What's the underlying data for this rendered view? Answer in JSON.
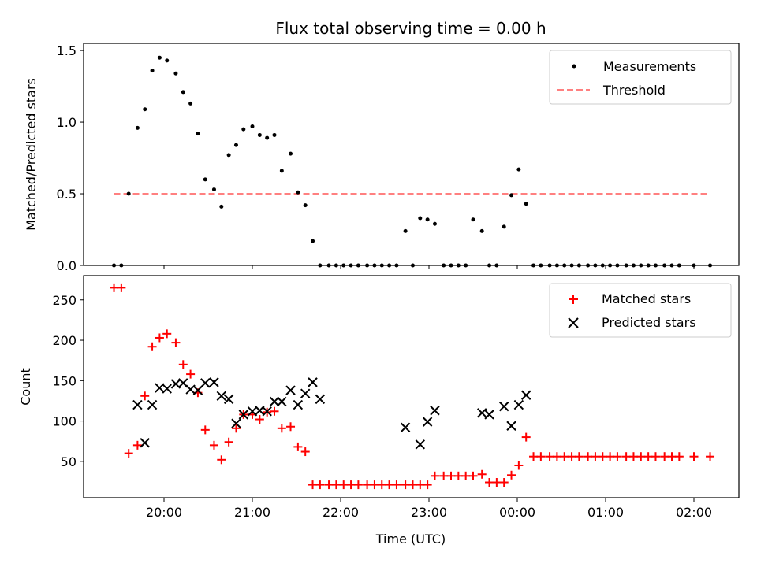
{
  "chart_data": [
    {
      "type": "scatter",
      "title": "Flux total observing time = 0.00 h",
      "xlabel": "",
      "ylabel": "Matched/Predicted stars",
      "ylim": [
        0,
        1.55
      ],
      "yticks": [
        "0.0",
        "0.5",
        "1.0",
        "1.5"
      ],
      "xticks": [
        "20:00",
        "21:00",
        "22:00",
        "23:00",
        "00:00",
        "01:00",
        "02:00"
      ],
      "legend": {
        "placement": "top-right",
        "entries": [
          "Measurements",
          "Threshold"
        ]
      },
      "series": [
        {
          "name": "Measurements",
          "x": [
            "19:26",
            "19:31",
            "19:36",
            "19:42",
            "19:47",
            "19:52",
            "19:57",
            "20:02",
            "20:08",
            "20:13",
            "20:18",
            "20:23",
            "20:28",
            "20:34",
            "20:39",
            "20:44",
            "20:49",
            "20:54",
            "21:00",
            "21:05",
            "21:10",
            "21:15",
            "21:20",
            "21:26",
            "21:31",
            "21:36",
            "21:41",
            "21:46",
            "21:52",
            "21:57",
            "22:02",
            "22:07",
            "22:12",
            "22:18",
            "22:23",
            "22:28",
            "22:33",
            "22:38",
            "22:44",
            "22:49",
            "22:54",
            "22:59",
            "23:04",
            "23:10",
            "23:15",
            "23:20",
            "23:25",
            "23:30",
            "23:36",
            "23:41",
            "23:46",
            "23:51",
            "23:56",
            "00:01",
            "00:06",
            "00:11",
            "00:16",
            "00:22",
            "00:27",
            "00:32",
            "00:37",
            "00:42",
            "00:48",
            "00:53",
            "00:58",
            "01:03",
            "01:08",
            "01:14",
            "01:19",
            "01:24",
            "01:29",
            "01:34",
            "01:40",
            "01:45",
            "01:50",
            "02:00",
            "02:11"
          ],
          "values": [
            0.0,
            0.0,
            0.5,
            0.96,
            1.09,
            1.36,
            1.45,
            1.43,
            1.34,
            1.21,
            1.13,
            0.92,
            0.6,
            0.53,
            0.41,
            0.77,
            0.84,
            0.95,
            0.97,
            0.91,
            0.89,
            0.91,
            0.66,
            0.78,
            0.51,
            0.42,
            0.17,
            0.0,
            0.0,
            0.0,
            0.0,
            0.0,
            0.0,
            0.0,
            0.0,
            0.0,
            0.0,
            0.0,
            0.24,
            0.0,
            0.33,
            0.32,
            0.29,
            0.0,
            0.0,
            0.0,
            0.0,
            0.32,
            0.24,
            0.0,
            0.0,
            0.27,
            0.49,
            0.67,
            0.43,
            0.0,
            0.0,
            0.0,
            0.0,
            0.0,
            0.0,
            0.0,
            0.0,
            0.0,
            0.0,
            0.0,
            0.0,
            0.0,
            0.0,
            0.0,
            0.0,
            0.0,
            0.0,
            0.0,
            0.0,
            0.0,
            0.0
          ],
          "color": "#000000"
        },
        {
          "name": "Threshold",
          "x": [
            "19:26",
            "02:11"
          ],
          "values": [
            0.5,
            0.5
          ],
          "color": "#ff8080"
        }
      ]
    },
    {
      "type": "scatter",
      "title": "",
      "xlabel": "Time (UTC)",
      "ylabel": "Count",
      "ylim": [
        5,
        280
      ],
      "yticks": [
        "50",
        "100",
        "150",
        "200",
        "250"
      ],
      "xticks": [
        "20:00",
        "21:00",
        "22:00",
        "23:00",
        "00:00",
        "01:00",
        "02:00"
      ],
      "legend": {
        "placement": "top-right",
        "entries": [
          "Matched stars",
          "Predicted stars"
        ]
      },
      "series": [
        {
          "name": "Matched stars",
          "color": "#ff0000",
          "x": [
            "19:26",
            "19:31",
            "19:36",
            "19:42",
            "19:47",
            "19:52",
            "19:57",
            "20:02",
            "20:08",
            "20:13",
            "20:18",
            "20:23",
            "20:28",
            "20:34",
            "20:39",
            "20:44",
            "20:49",
            "20:54",
            "21:00",
            "21:05",
            "21:10",
            "21:15",
            "21:20",
            "21:26",
            "21:31",
            "21:36",
            "21:41",
            "21:46",
            "21:52",
            "21:57",
            "22:02",
            "22:07",
            "22:12",
            "22:18",
            "22:23",
            "22:28",
            "22:33",
            "22:38",
            "22:44",
            "22:49",
            "22:54",
            "22:59",
            "23:04",
            "23:10",
            "23:15",
            "23:20",
            "23:25",
            "23:30",
            "23:36",
            "23:41",
            "23:46",
            "23:51",
            "23:56",
            "00:01",
            "00:06",
            "00:11",
            "00:16",
            "00:22",
            "00:27",
            "00:32",
            "00:37",
            "00:42",
            "00:48",
            "00:53",
            "00:58",
            "01:03",
            "01:08",
            "01:14",
            "01:19",
            "01:24",
            "01:29",
            "01:34",
            "01:40",
            "01:45",
            "01:50",
            "02:00",
            "02:11"
          ],
          "values": [
            265,
            265,
            60,
            70,
            131,
            192,
            203,
            208,
            197,
            170,
            158,
            135,
            89,
            70,
            52,
            74,
            91,
            108,
            108,
            102,
            111,
            112,
            91,
            93,
            68,
            62,
            21,
            21,
            21,
            21,
            21,
            21,
            21,
            21,
            21,
            21,
            21,
            21,
            21,
            21,
            21,
            21,
            32,
            32,
            32,
            32,
            32,
            32,
            34,
            24,
            24,
            24,
            33,
            45,
            80,
            56,
            56,
            56,
            56,
            56,
            56,
            56,
            56,
            56,
            56,
            56,
            56,
            56,
            56,
            56,
            56,
            56,
            56,
            56,
            56,
            56,
            56
          ]
        },
        {
          "name": "Predicted stars",
          "color": "#000000",
          "x": [
            "19:42",
            "19:47",
            "19:52",
            "19:57",
            "20:02",
            "20:08",
            "20:13",
            "20:18",
            "20:23",
            "20:28",
            "20:34",
            "20:39",
            "20:44",
            "20:49",
            "20:54",
            "21:00",
            "21:05",
            "21:10",
            "21:15",
            "21:20",
            "21:26",
            "21:31",
            "21:36",
            "21:41",
            "21:46",
            "22:44",
            "22:54",
            "22:59",
            "23:04",
            "23:36",
            "23:41",
            "23:51",
            "23:56",
            "00:01",
            "00:06"
          ],
          "values": [
            120,
            73,
            120,
            141,
            140,
            146,
            147,
            139,
            138,
            147,
            148,
            131,
            127,
            97,
            108,
            112,
            113,
            112,
            124,
            124,
            138,
            120,
            134,
            148,
            127,
            92,
            71,
            99,
            113,
            110,
            108,
            118,
            94,
            120,
            132
          ]
        }
      ]
    }
  ]
}
